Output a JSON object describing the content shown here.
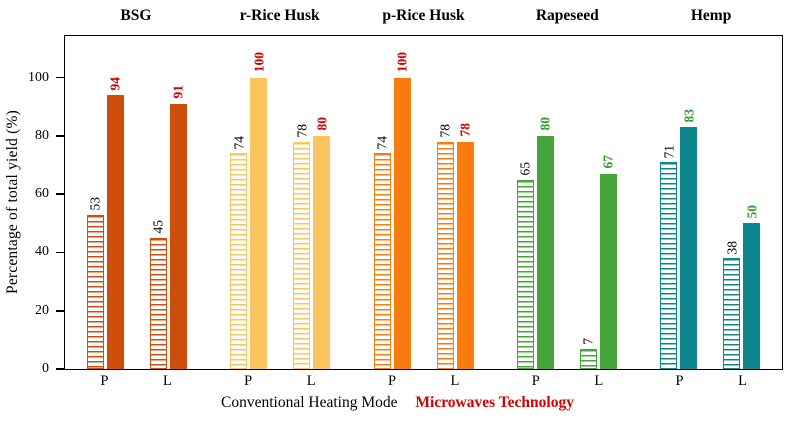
{
  "chart_data": {
    "type": "bar",
    "title": "",
    "ylabel": "Percentage of total yield (%)",
    "xlabel": "",
    "ylim": [
      0,
      115
    ],
    "yticks": [
      0,
      20,
      40,
      60,
      80,
      100
    ],
    "grid": false,
    "legend_position": "bottom-center",
    "bar_styles": {
      "conventional": "hatched-horizontal-stripes",
      "microwave": "solid-fill"
    },
    "legend": {
      "conventional": {
        "label": "Conventional Heating Mode",
        "color": "#000000"
      },
      "microwave": {
        "label": "Microwaves Technology",
        "color": "#d40000"
      }
    },
    "x_sublabels": [
      "P",
      "L"
    ],
    "groups": [
      {
        "name": "BSG",
        "bar_color": "#ce4f0c",
        "value_label_color": "#d40000",
        "clusters": [
          {
            "x": "P",
            "conventional": 53,
            "microwave": 94
          },
          {
            "x": "L",
            "conventional": 45,
            "microwave": 91
          }
        ]
      },
      {
        "name": "r-Rice Husk",
        "bar_color": "#fcc45f",
        "value_label_color": "#d40000",
        "clusters": [
          {
            "x": "P",
            "conventional": 74,
            "microwave": 100
          },
          {
            "x": "L",
            "conventional": 78,
            "microwave": 80
          }
        ]
      },
      {
        "name": "p-Rice Husk",
        "bar_color": "#f97d0e",
        "value_label_color": "#d40000",
        "clusters": [
          {
            "x": "P",
            "conventional": 74,
            "microwave": 100
          },
          {
            "x": "L",
            "conventional": 78,
            "microwave": 78
          }
        ]
      },
      {
        "name": "Rapeseed",
        "bar_color": "#46a53a",
        "value_label_color": "#2f9e2f",
        "clusters": [
          {
            "x": "P",
            "conventional": 65,
            "microwave": 80
          },
          {
            "x": "L",
            "conventional": 7,
            "microwave": 67
          }
        ]
      },
      {
        "name": "Hemp",
        "bar_color": "#0e868d",
        "value_label_color": "#2f9e2f",
        "clusters": [
          {
            "x": "P",
            "conventional": 71,
            "microwave": 83
          },
          {
            "x": "L",
            "conventional": 38,
            "microwave": 50
          }
        ]
      }
    ]
  }
}
